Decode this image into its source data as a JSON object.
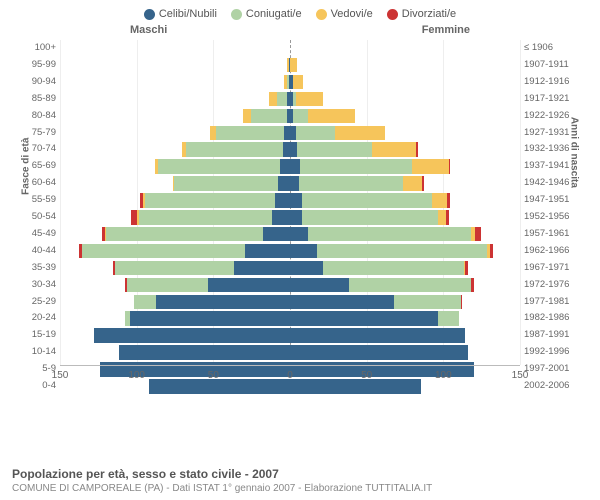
{
  "chart": {
    "type": "population-pyramid-stacked",
    "background_color": "#ffffff",
    "grid_color": "#eeeeee",
    "axis_color": "#bbbbbb",
    "text_color": "#666666",
    "legend": [
      {
        "label": "Celibi/Nubili",
        "color": "#36648b"
      },
      {
        "label": "Coniugati/e",
        "color": "#b0d2a5"
      },
      {
        "label": "Vedovi/e",
        "color": "#f6c55b"
      },
      {
        "label": "Divorziati/e",
        "color": "#cc3333"
      }
    ],
    "header_left": "Maschi",
    "header_right": "Femmine",
    "y_title_left": "Fasce di età",
    "y_title_right": "Anni di nascita",
    "x_ticks": [
      150,
      100,
      50,
      0,
      50,
      100,
      150
    ],
    "x_max": 155,
    "rows": [
      {
        "age": "100+",
        "birth": "≤ 1906",
        "m": [
          0,
          0,
          0,
          0
        ],
        "f": [
          0,
          0,
          0,
          0
        ]
      },
      {
        "age": "95-99",
        "birth": "1907-1911",
        "m": [
          1,
          0,
          1,
          0
        ],
        "f": [
          0,
          0,
          5,
          0
        ]
      },
      {
        "age": "90-94",
        "birth": "1912-1916",
        "m": [
          1,
          1,
          2,
          0
        ],
        "f": [
          2,
          0,
          7,
          0
        ]
      },
      {
        "age": "85-89",
        "birth": "1917-1921",
        "m": [
          2,
          7,
          5,
          0
        ],
        "f": [
          2,
          2,
          18,
          0
        ]
      },
      {
        "age": "80-84",
        "birth": "1922-1926",
        "m": [
          2,
          24,
          6,
          0
        ],
        "f": [
          2,
          10,
          32,
          0
        ]
      },
      {
        "age": "75-79",
        "birth": "1927-1931",
        "m": [
          4,
          46,
          4,
          0
        ],
        "f": [
          4,
          26,
          34,
          0
        ]
      },
      {
        "age": "70-74",
        "birth": "1932-1936",
        "m": [
          5,
          65,
          3,
          0
        ],
        "f": [
          5,
          50,
          30,
          1
        ]
      },
      {
        "age": "65-69",
        "birth": "1937-1941",
        "m": [
          7,
          82,
          2,
          0
        ],
        "f": [
          7,
          75,
          25,
          1
        ]
      },
      {
        "age": "60-64",
        "birth": "1942-1946",
        "m": [
          8,
          70,
          1,
          0
        ],
        "f": [
          6,
          70,
          13,
          1
        ]
      },
      {
        "age": "55-59",
        "birth": "1947-1951",
        "m": [
          10,
          88,
          1,
          2
        ],
        "f": [
          8,
          88,
          10,
          2
        ]
      },
      {
        "age": "50-54",
        "birth": "1952-1956",
        "m": [
          12,
          90,
          1,
          4
        ],
        "f": [
          8,
          92,
          5,
          2
        ]
      },
      {
        "age": "45-49",
        "birth": "1957-1961",
        "m": [
          18,
          106,
          1,
          2
        ],
        "f": [
          12,
          110,
          3,
          4
        ]
      },
      {
        "age": "40-44",
        "birth": "1962-1966",
        "m": [
          30,
          110,
          0,
          2
        ],
        "f": [
          18,
          115,
          2,
          2
        ]
      },
      {
        "age": "35-39",
        "birth": "1967-1971",
        "m": [
          38,
          80,
          0,
          1
        ],
        "f": [
          22,
          95,
          1,
          2
        ]
      },
      {
        "age": "30-34",
        "birth": "1972-1976",
        "m": [
          55,
          55,
          0,
          1
        ],
        "f": [
          40,
          82,
          0,
          2
        ]
      },
      {
        "age": "25-29",
        "birth": "1977-1981",
        "m": [
          90,
          15,
          0,
          0
        ],
        "f": [
          70,
          45,
          0,
          1
        ]
      },
      {
        "age": "20-24",
        "birth": "1982-1986",
        "m": [
          108,
          3,
          0,
          0
        ],
        "f": [
          100,
          14,
          0,
          0
        ]
      },
      {
        "age": "15-19",
        "birth": "1987-1991",
        "m": [
          132,
          0,
          0,
          0
        ],
        "f": [
          118,
          0,
          0,
          0
        ]
      },
      {
        "age": "10-14",
        "birth": "1992-1996",
        "m": [
          115,
          0,
          0,
          0
        ],
        "f": [
          120,
          0,
          0,
          0
        ]
      },
      {
        "age": "5-9",
        "birth": "1997-2001",
        "m": [
          128,
          0,
          0,
          0
        ],
        "f": [
          124,
          0,
          0,
          0
        ]
      },
      {
        "age": "0-4",
        "birth": "2002-2006",
        "m": [
          95,
          0,
          0,
          0
        ],
        "f": [
          88,
          0,
          0,
          0
        ]
      }
    ],
    "footer_title": "Popolazione per età, sesso e stato civile - 2007",
    "footer_sub": "COMUNE DI CAMPOREALE (PA) - Dati ISTAT 1° gennaio 2007 - Elaborazione TUTTITALIA.IT"
  }
}
